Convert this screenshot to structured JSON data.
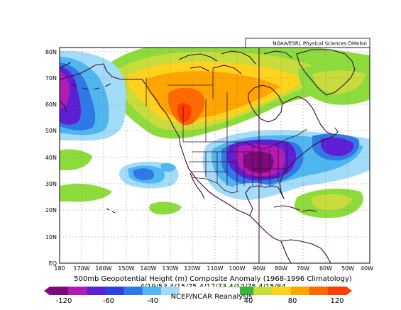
{
  "map": {
    "credit": "NOAA/ESRL Physical Sciences DMelon",
    "title": "500mb Geopotential Height (m) Composite Anomaly (1968-1996 Climatology)",
    "dates": "4/19/53 4/15/75 4/17/73 4/12/75 4/15/84",
    "source": "NCEP/NCAR Reanalysis",
    "lat_labels": [
      "80N",
      "70N",
      "60N",
      "50N",
      "40N",
      "30N",
      "20N",
      "10N",
      "EQ"
    ],
    "lon_labels": [
      "180",
      "170W",
      "160W",
      "150W",
      "140W",
      "130W",
      "120W",
      "110W",
      "100W",
      "90W",
      "80W",
      "70W",
      "60W",
      "50W",
      "40W"
    ],
    "colorbar": {
      "tick_labels": [
        "-120",
        "-60",
        "-40",
        "40",
        "80",
        "120"
      ],
      "colors": [
        "#7d0a7d",
        "#b41ab4",
        "#5e1fd2",
        "#2f3fe6",
        "#2f79e6",
        "#4fb6f0",
        "#a3dcf8",
        "#ffffff",
        "#ffffff",
        "#8ddc3c",
        "#3cb43c",
        "#c8dc3c",
        "#ffd21e",
        "#ffa500",
        "#ff6a00",
        "#ff3c00"
      ]
    }
  }
}
